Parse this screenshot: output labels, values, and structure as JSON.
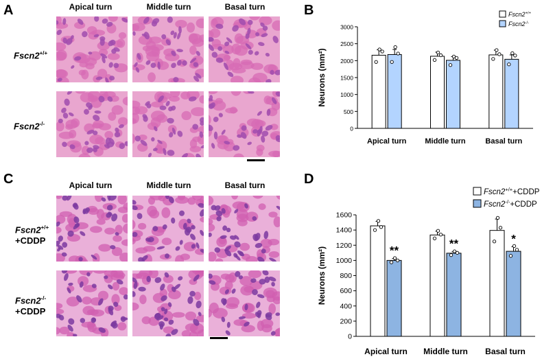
{
  "panels": {
    "A": {
      "letter": "A",
      "columns": [
        "Apical turn",
        "Middle turn",
        "Basal turn"
      ],
      "rows": [
        {
          "name": "Fscn2",
          "sup": "+/+",
          "extra": ""
        },
        {
          "name": "Fscn2",
          "sup": "-/-",
          "extra": ""
        }
      ],
      "stain_colors": {
        "background": "#e9a6cf",
        "nucleus": "#a04cae",
        "cytoplasm": "#d76bb4"
      }
    },
    "C": {
      "letter": "C",
      "columns": [
        "Apical turn",
        "Middle turn",
        "Basal turn"
      ],
      "rows": [
        {
          "name": "Fscn2",
          "sup": "+/+",
          "extra": "+CDDP"
        },
        {
          "name": "Fscn2",
          "sup": "-/-",
          "extra": "+CDDP"
        }
      ],
      "stain_colors": {
        "background": "#eab0d9",
        "nucleus": "#7d3aa0",
        "cytoplasm": "#d05fb0"
      }
    },
    "B": {
      "letter": "B"
    },
    "D": {
      "letter": "D"
    }
  },
  "chart_data": [
    {
      "panel": "B",
      "type": "bar",
      "categories": [
        "Apical turn",
        "Middle turn",
        "Basal turn"
      ],
      "ylabel": "Neurons (mm²)",
      "ylim": [
        0,
        3000
      ],
      "yticks": [
        0,
        500,
        1000,
        1500,
        2000,
        2500,
        3000
      ],
      "grid": false,
      "legend_placement": "top-right",
      "series": [
        {
          "name": "Fscn2",
          "sup": "+/+",
          "suffix": "",
          "color": "#ffffff",
          "values": [
            2160,
            2130,
            2170
          ],
          "errors": [
            160,
            120,
            140
          ],
          "points": [
            [
              2330,
              2270,
              1960
            ],
            [
              2240,
              2160,
              2020
            ],
            [
              2310,
              2190,
              2050
            ]
          ]
        },
        {
          "name": "Fscn2",
          "sup": "-/-",
          "suffix": "",
          "color": "#b3d4ff",
          "values": [
            2180,
            2010,
            2040
          ],
          "errors": [
            150,
            110,
            130
          ],
          "points": [
            [
              2400,
              2210,
              1960
            ],
            [
              2120,
              2080,
              1870
            ],
            [
              2220,
              2150,
              1890
            ]
          ]
        }
      ],
      "significance": [
        "",
        "",
        ""
      ]
    },
    {
      "panel": "D",
      "type": "bar",
      "categories": [
        "Apical turn",
        "Middle turn",
        "Basal turn"
      ],
      "ylabel": "Neurons (mm²)",
      "ylim": [
        0,
        1600
      ],
      "yticks": [
        0,
        200,
        400,
        600,
        800,
        1000,
        1200,
        1400,
        1600
      ],
      "grid": false,
      "legend_placement": "top-right",
      "series": [
        {
          "name": "Fscn2",
          "sup": "+/+",
          "suffix": "+CDDP",
          "color": "#ffffff",
          "values": [
            1455,
            1335,
            1395
          ],
          "errors": [
            60,
            50,
            150
          ],
          "points": [
            [
              1520,
              1440,
              1400
            ],
            [
              1390,
              1340,
              1290
            ],
            [
              1560,
              1430,
              1250
            ]
          ]
        },
        {
          "name": "Fscn2",
          "sup": "-/-",
          "suffix": "+CDDP",
          "color": "#8db4e2",
          "values": [
            1000,
            1095,
            1120
          ],
          "errors": [
            25,
            20,
            60
          ],
          "points": [
            [
              1030,
              1000,
              975
            ],
            [
              1120,
              1100,
              1070
            ],
            [
              1190,
              1140,
              1060
            ]
          ]
        }
      ],
      "significance": [
        "**",
        "**",
        "*"
      ]
    }
  ]
}
